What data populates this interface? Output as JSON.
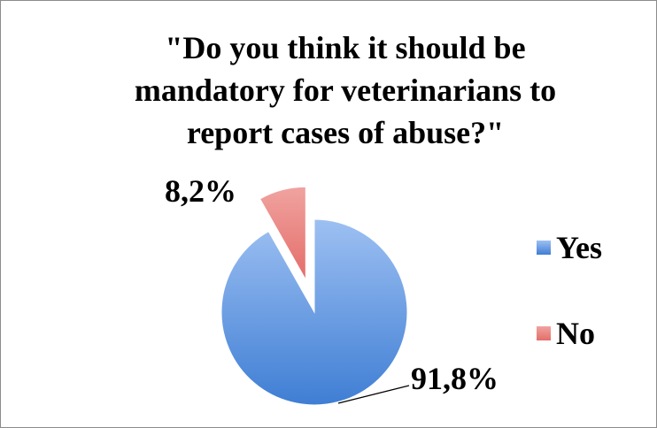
{
  "chart_data": {
    "type": "pie",
    "title_lines": [
      "\"Do you think it should be",
      "mandatory for veterinarians to",
      "report cases of abuse?\""
    ],
    "categories": [
      "Yes",
      "No"
    ],
    "values": [
      91.8,
      8.2
    ],
    "data_labels": [
      "91,8%",
      "8,2%"
    ],
    "exploded": [
      "No"
    ],
    "legend_position": "right",
    "colors": {
      "Yes": "#6f9ee0",
      "No": "#e57a76"
    }
  }
}
